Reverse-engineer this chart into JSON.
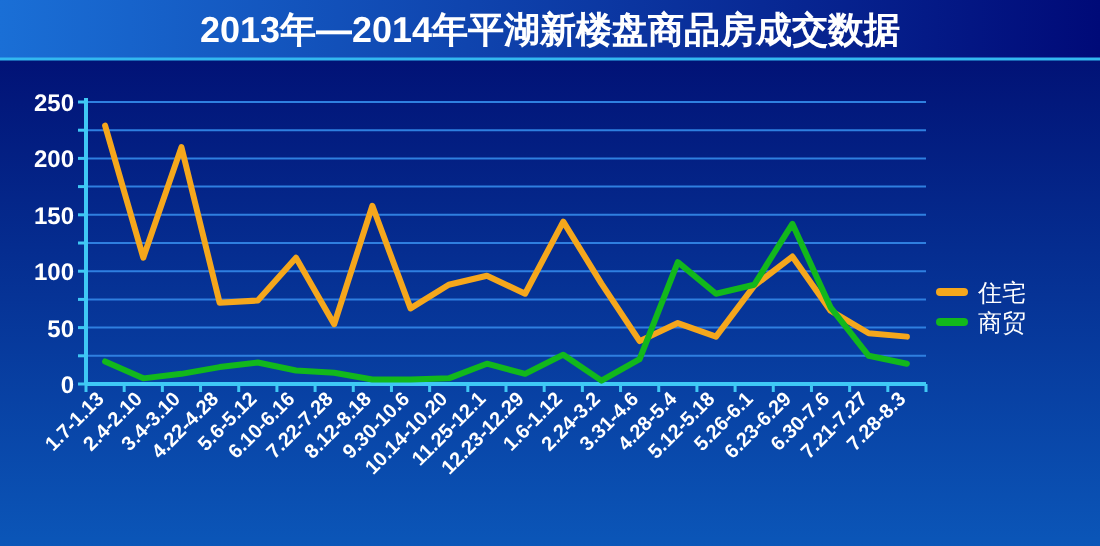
{
  "chart_data": {
    "type": "line",
    "title": "2013年—2014年平湖新楼盘商品房成交数据",
    "categories": [
      "1.7-1.13",
      "2.4-2.10",
      "3.4-3.10",
      "4.22-4.28",
      "5.6-5.12",
      "6.10-6.16",
      "7.22-7.28",
      "8.12-8.18",
      "9.30-10.6",
      "10.14-10.20",
      "11.25-12.1",
      "12.23-12.29",
      "1.6-1.12",
      "2.24-3.2",
      "3.31-4.6",
      "4.28-5.4",
      "5.12-5.18",
      "5.26-6.1",
      "6.23-6.29",
      "6.30-7.6",
      "7.21-7.27",
      "7.28-8.3"
    ],
    "series": [
      {
        "name": "住宅",
        "color": "#f5a71c",
        "values": [
          229,
          112,
          210,
          72,
          74,
          112,
          53,
          158,
          67,
          88,
          96,
          80,
          144,
          89,
          38,
          54,
          42,
          87,
          113,
          65,
          45,
          42
        ]
      },
      {
        "name": "商贸",
        "color": "#12b81c",
        "values": [
          20,
          5,
          9,
          15,
          19,
          12,
          10,
          4,
          4,
          5,
          18,
          9,
          26,
          3,
          22,
          108,
          80,
          88,
          142,
          68,
          25,
          18
        ]
      }
    ],
    "ylim": [
      0,
      250
    ],
    "yticks": [
      0,
      {
        "value": 25,
        "label": null
      },
      50,
      {
        "value": 75,
        "label": null
      },
      100,
      {
        "value": 125,
        "label": null
      },
      150,
      {
        "value": 175,
        "label": null
      },
      200,
      {
        "value": 225,
        "label": null
      },
      250
    ],
    "grid": "y",
    "legend": "right",
    "marker": "none",
    "line_style": "solid"
  }
}
